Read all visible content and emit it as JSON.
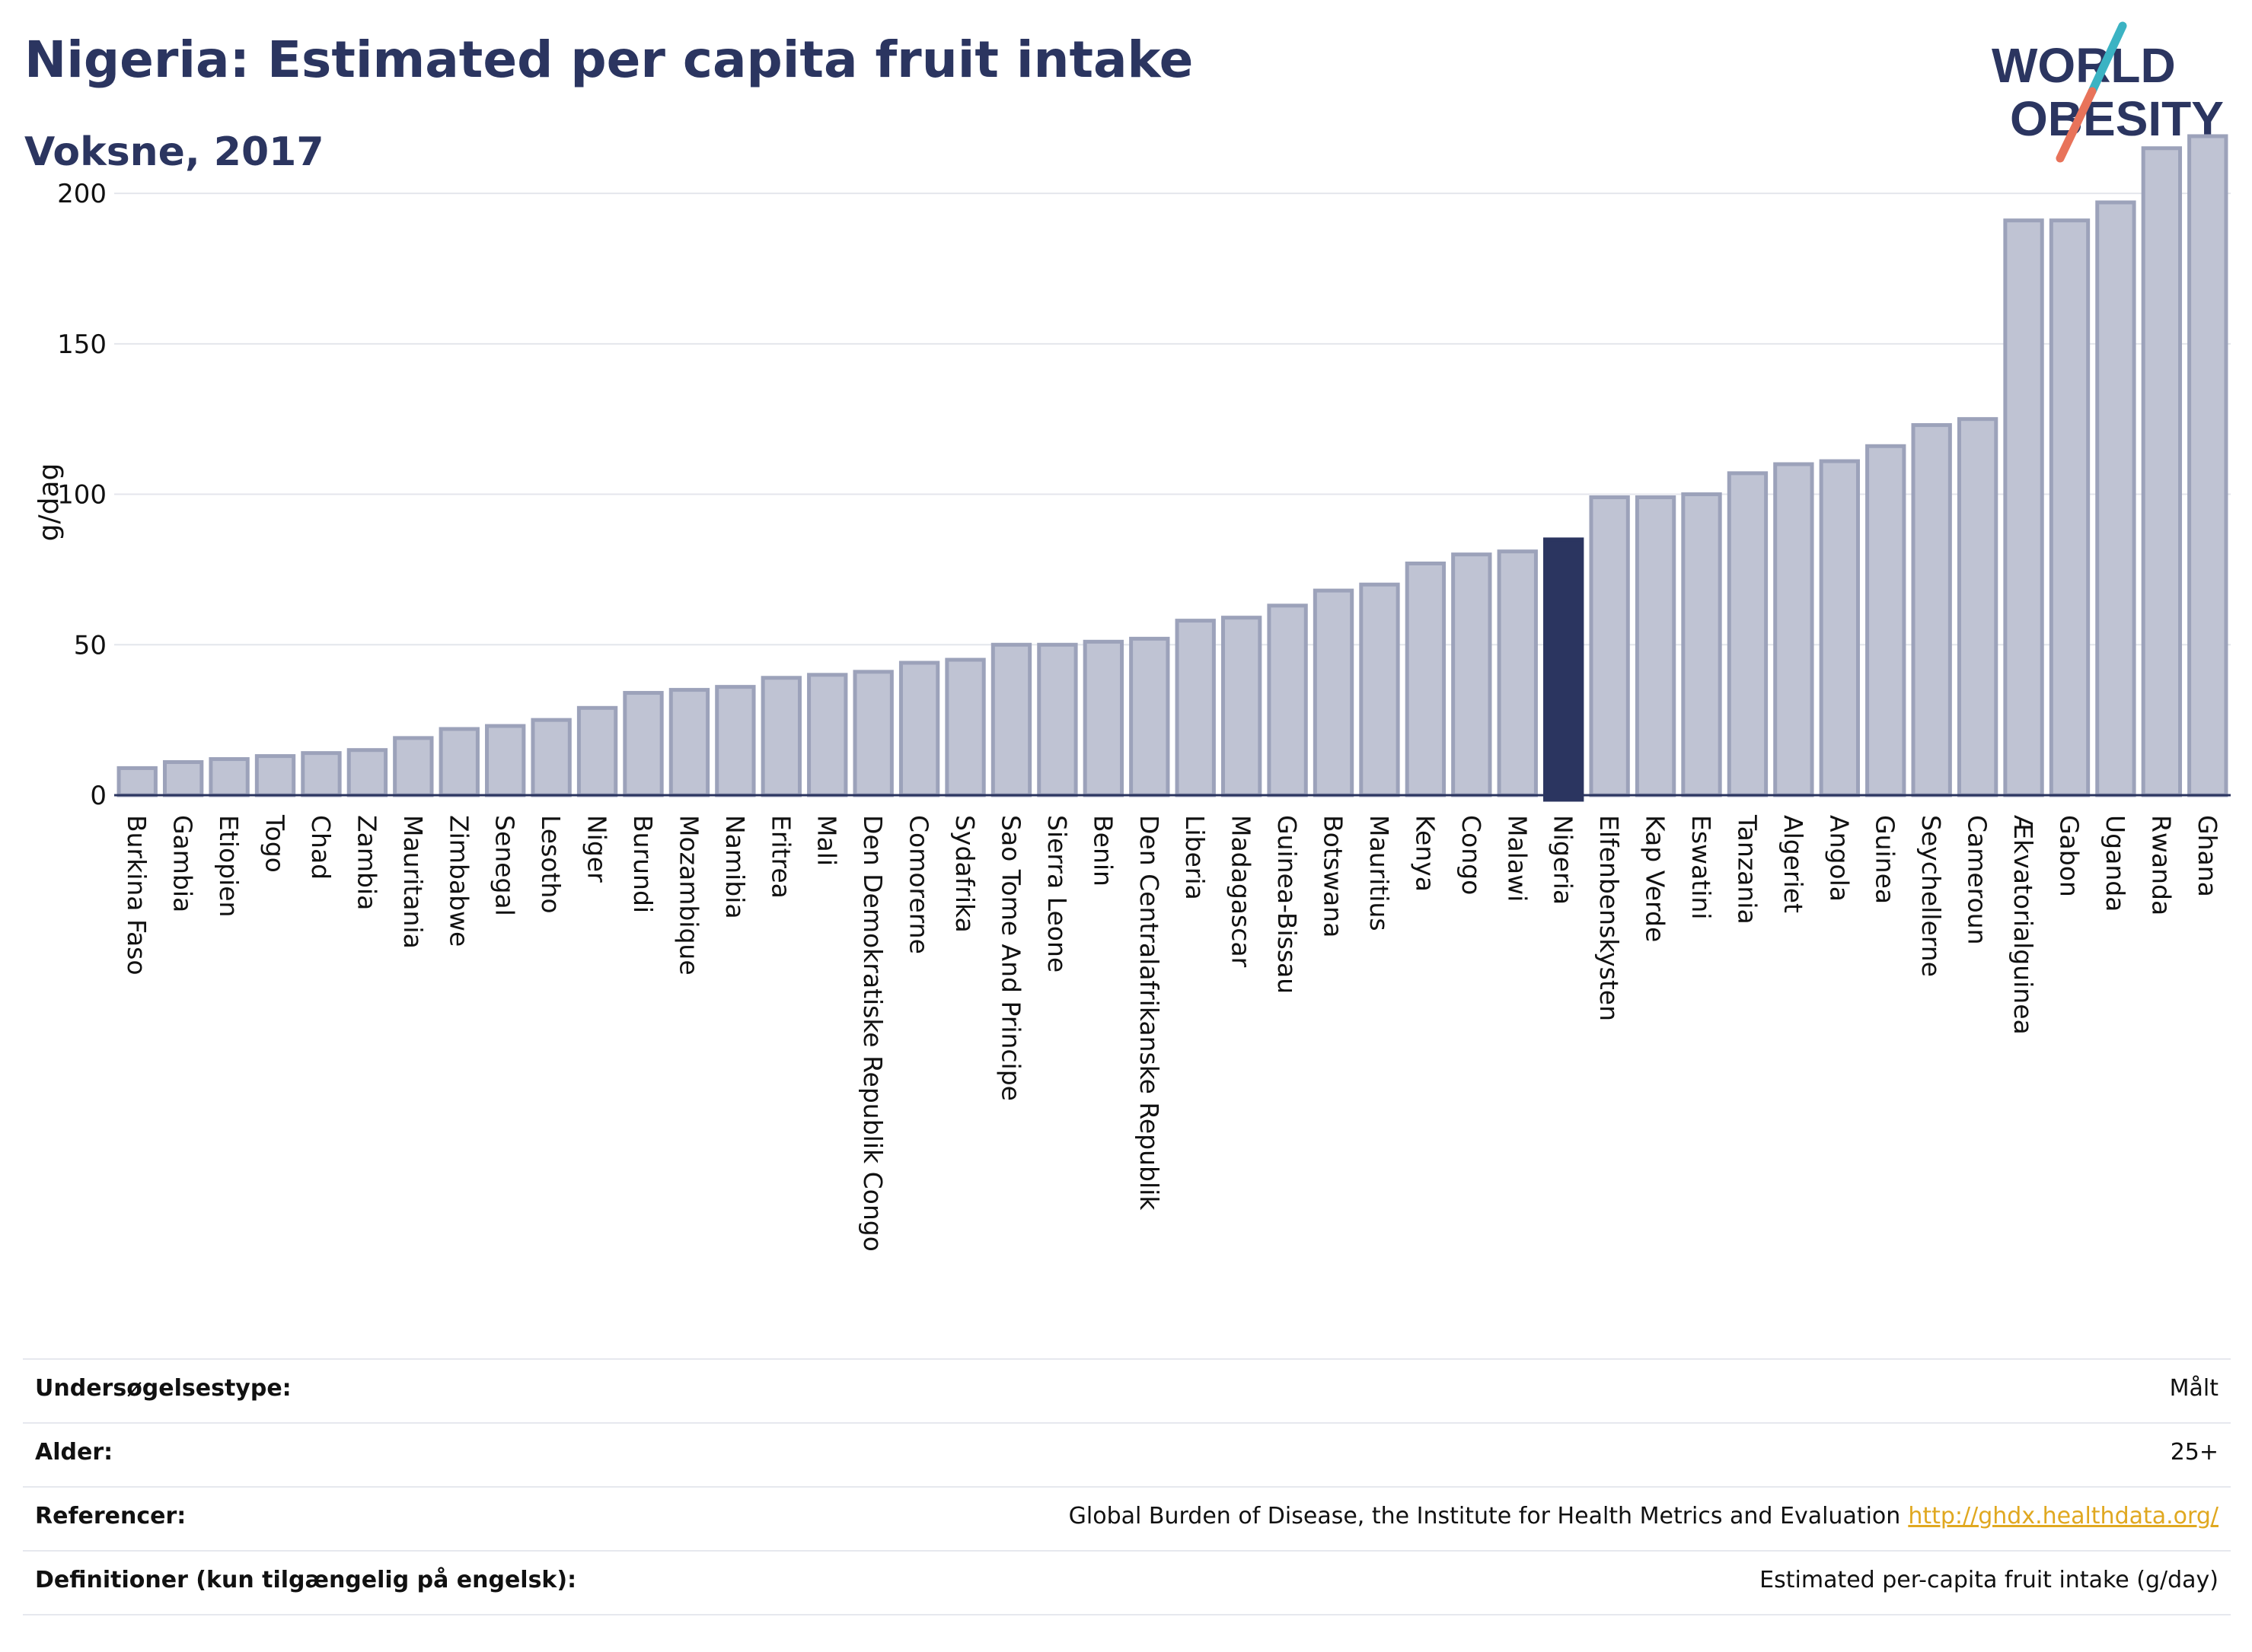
{
  "header": {
    "title": "Nigeria: Estimated per capita fruit intake",
    "subtitle": "Voksne, 2017"
  },
  "logo": {
    "line1": "WORLD",
    "line2": "OBESITY",
    "colors": {
      "text": "#2b3560",
      "teal": "#3bb3c3",
      "coral": "#e8735a"
    }
  },
  "colors": {
    "bar": "#bfc3d3",
    "bar_stroke": "#9ca2ba",
    "highlight": "#2b3560",
    "grid": "#e4e6ec",
    "axis": "#2b3560"
  },
  "chart_data": {
    "type": "bar",
    "ylabel": "g/dag",
    "ylim": [
      0,
      220
    ],
    "yticks": [
      0,
      50,
      100,
      150,
      200
    ],
    "grid": true,
    "highlight": "Nigeria",
    "categories": [
      "Burkina Faso",
      "Gambia",
      "Etiopien",
      "Togo",
      "Chad",
      "Zambia",
      "Mauritania",
      "Zimbabwe",
      "Senegal",
      "Lesotho",
      "Niger",
      "Burundi",
      "Mozambique",
      "Namibia",
      "Eritrea",
      "Mali",
      "Den Demokratiske Republik Congo",
      "Comorerne",
      "Sydafrika",
      "Sao Tome And Principe",
      "Sierra Leone",
      "Benin",
      "Den Centralafrikanske Republik",
      "Liberia",
      "Madagascar",
      "Guinea-Bissau",
      "Botswana",
      "Mauritius",
      "Kenya",
      "Congo",
      "Malawi",
      "Nigeria",
      "Elfenbenskysten",
      "Kap Verde",
      "Eswatini",
      "Tanzania",
      "Algeriet",
      "Angola",
      "Guinea",
      "Seychellerne",
      "Cameroun",
      "Ækvatorialguinea",
      "Gabon",
      "Uganda",
      "Rwanda",
      "Ghana"
    ],
    "values": [
      9,
      11,
      12,
      13,
      14,
      15,
      19,
      22,
      23,
      25,
      29,
      34,
      35,
      36,
      39,
      40,
      41,
      44,
      45,
      50,
      50,
      51,
      52,
      58,
      59,
      63,
      68,
      70,
      77,
      80,
      81,
      85,
      99,
      99,
      100,
      107,
      110,
      111,
      116,
      123,
      125,
      191,
      191,
      197,
      215,
      219
    ]
  },
  "meta": {
    "rows": [
      {
        "label": "Undersøgelsestype:",
        "value": "Målt"
      },
      {
        "label": "Alder:",
        "value": "25+"
      },
      {
        "label": "Referencer:",
        "value": "Global Burden of Disease, the Institute for Health Metrics and Evaluation",
        "link": "http://ghdx.healthdata.org/"
      },
      {
        "label": "Definitioner (kun tilgængelig på engelsk):",
        "value": "Estimated per-capita fruit intake (g/day)"
      }
    ]
  }
}
